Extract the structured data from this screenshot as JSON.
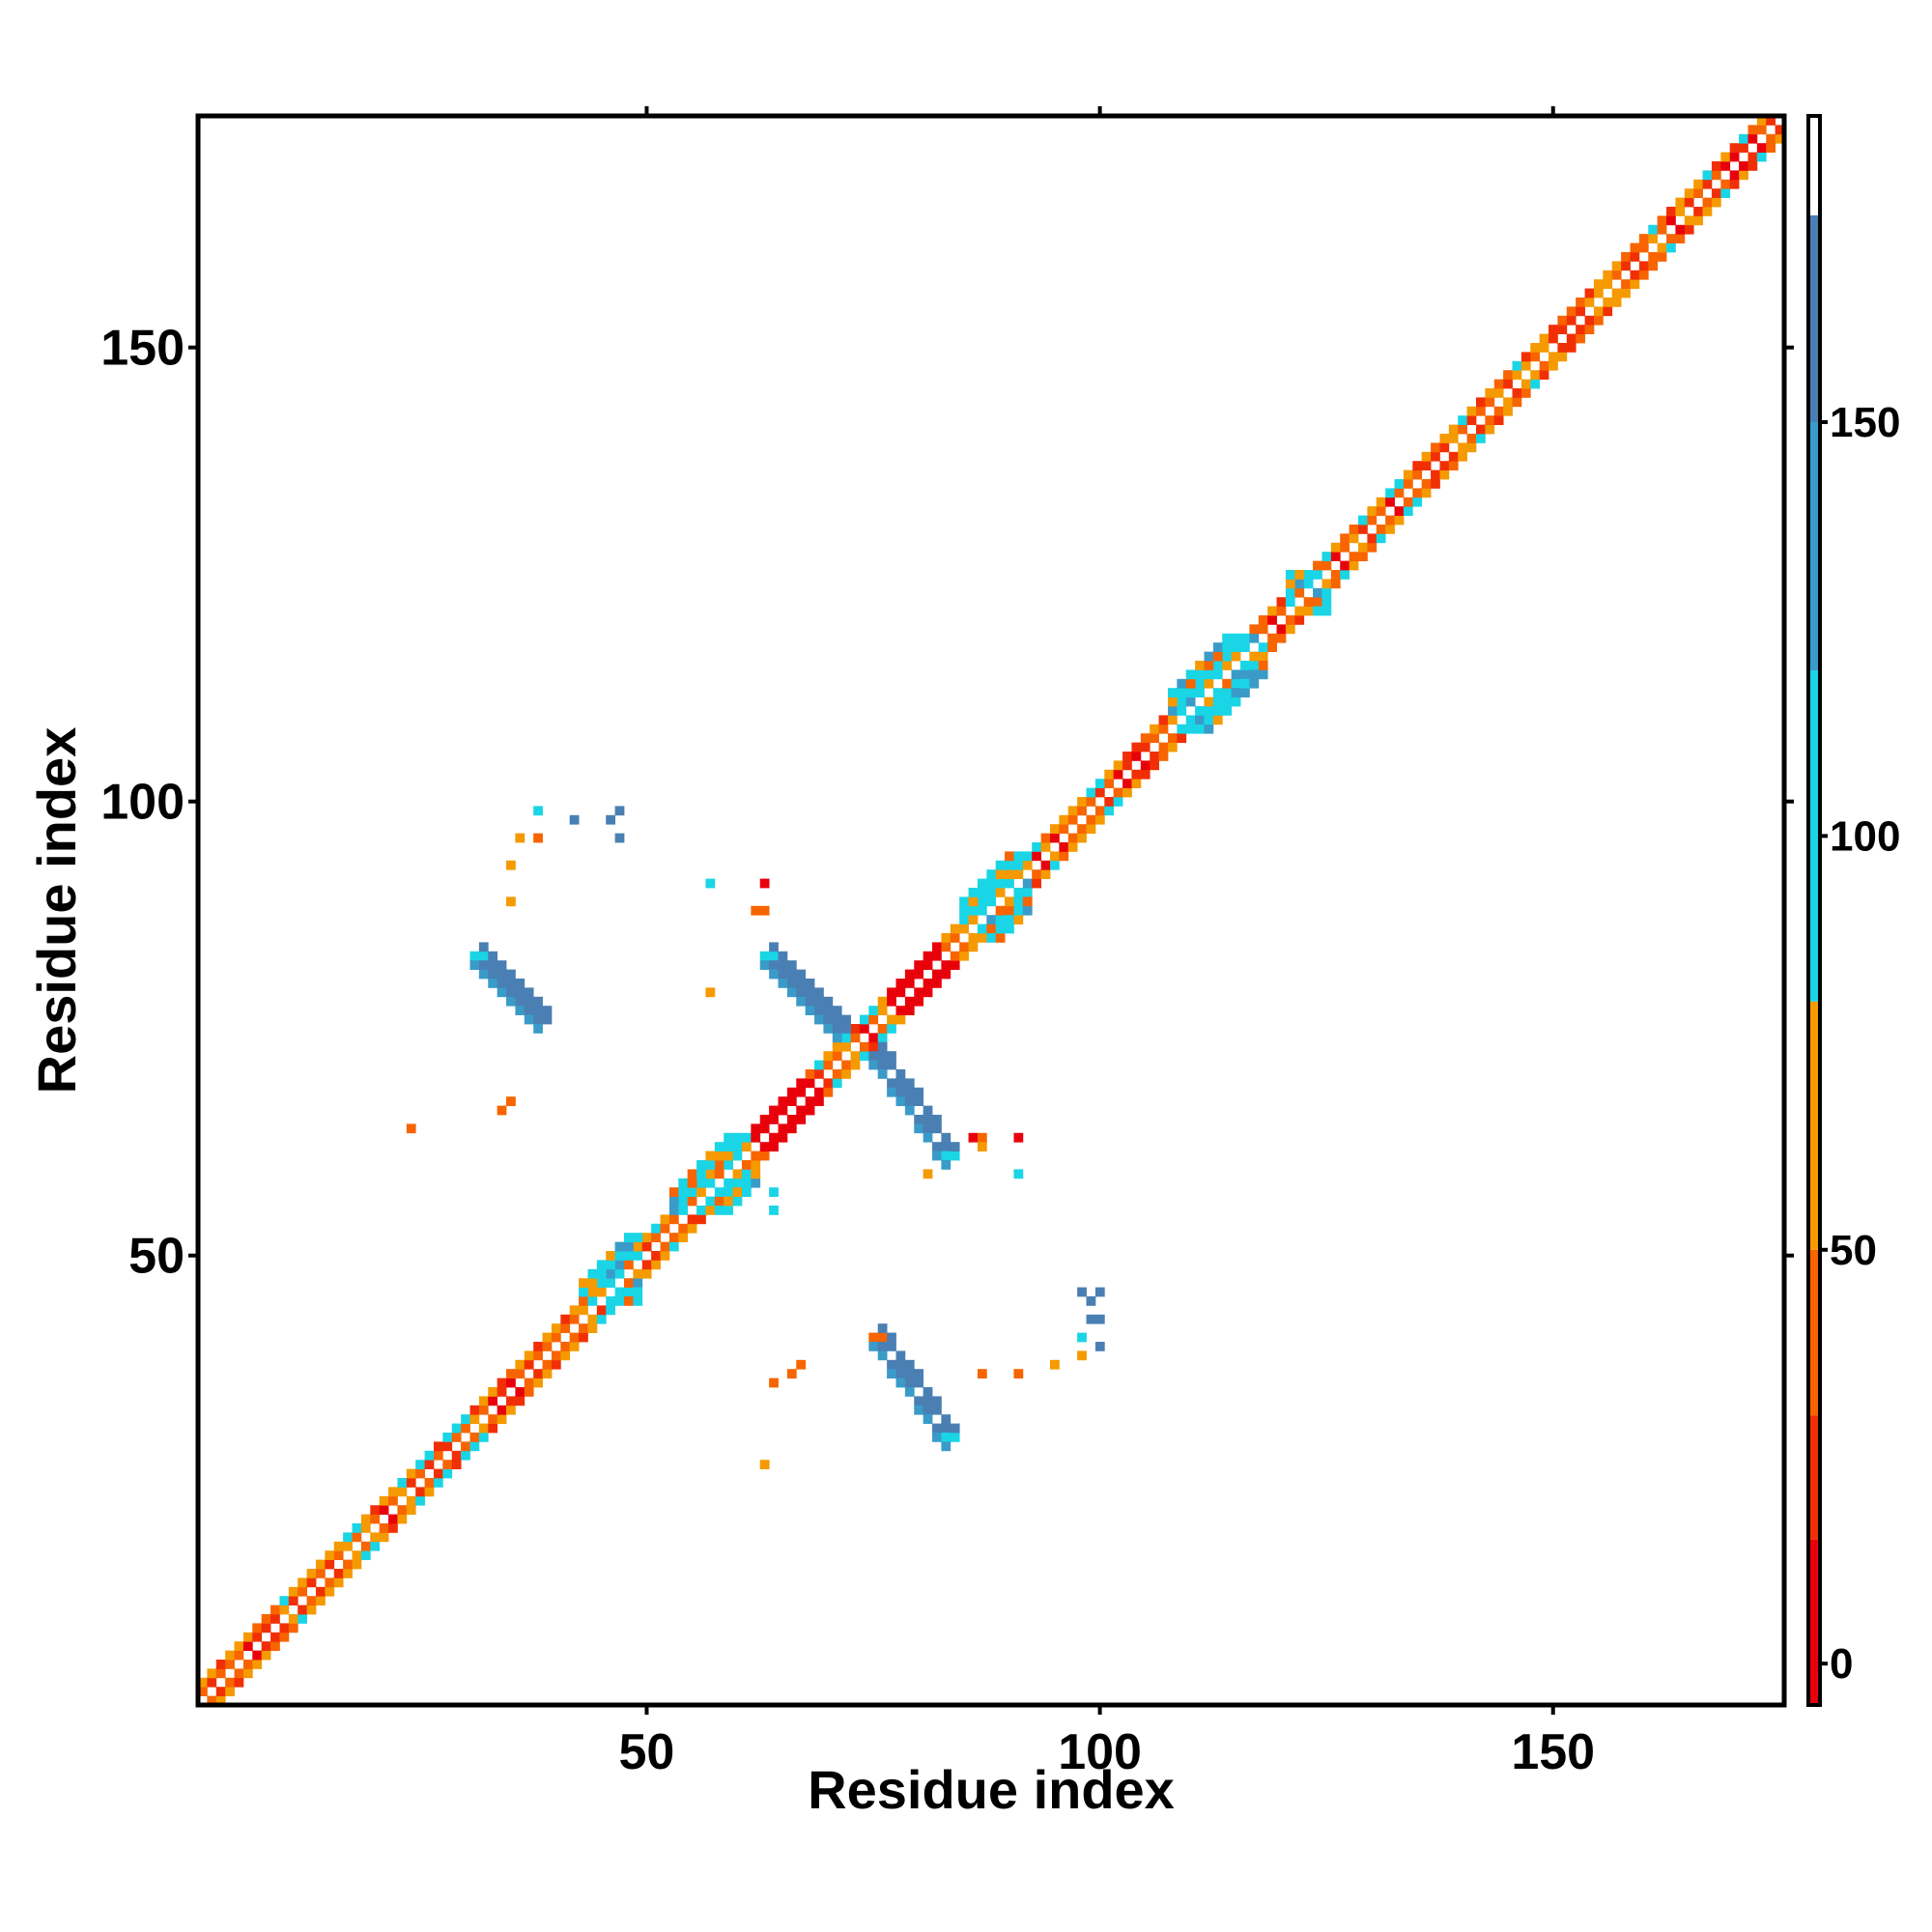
{
  "chart_data": {
    "type": "heatmap",
    "title": "",
    "xlabel": "Residue index",
    "ylabel": "Residue index",
    "xlim": [
      1,
      175
    ],
    "ylim": [
      1,
      175
    ],
    "grid": false,
    "x_ticks": [
      50,
      100,
      150
    ],
    "x_tick_labels": [
      "50",
      "100",
      "150"
    ],
    "y_ticks": [
      50,
      100,
      150
    ],
    "y_tick_labels": [
      "50",
      "100",
      "150"
    ],
    "colorbar": {
      "range": [
        -5,
        187
      ],
      "ticks": [
        0,
        50,
        100,
        150
      ],
      "tick_labels": [
        "0",
        "50",
        "100",
        "150"
      ],
      "bands": [
        {
          "from": -5,
          "to": 15,
          "color": "#e8000b"
        },
        {
          "from": 15,
          "to": 30,
          "color": "#f12f05"
        },
        {
          "from": 30,
          "to": 50,
          "color": "#f76400"
        },
        {
          "from": 50,
          "to": 80,
          "color": "#f59a00"
        },
        {
          "from": 80,
          "to": 120,
          "color": "#1ad5e6"
        },
        {
          "from": 120,
          "to": 150,
          "color": "#3a9bc8"
        },
        {
          "from": 150,
          "to": 175,
          "color": "#4a7fb3"
        },
        {
          "from": 175,
          "to": 187,
          "color": "#ffffff"
        }
      ]
    },
    "diagonal_band": {
      "start": 1,
      "end": 175,
      "half_width": 2
    },
    "strands": [
      {
        "i": [
          31,
          38
        ],
        "j": [
          83,
          76
        ],
        "value": 160
      },
      {
        "i": [
          63,
          71
        ],
        "j": [
          83,
          75
        ],
        "value": 160
      },
      {
        "i": [
          75,
          83
        ],
        "j": [
          72,
          61
        ],
        "value": 160
      },
      {
        "i": [
          75,
          83
        ],
        "j": [
          41,
          30
        ],
        "value": 160
      }
    ],
    "strand_ends": [
      {
        "i": 31,
        "j": 83,
        "value": 100
      },
      {
        "i": 63,
        "j": 83,
        "value": 100
      },
      {
        "i": 83,
        "j": 61,
        "value": 100
      },
      {
        "i": 83,
        "j": 30,
        "value": 100
      },
      {
        "i": 75,
        "j": 41,
        "value": 40
      }
    ],
    "red_stretches": [
      {
        "x": [
          62,
          67
        ],
        "y": [
          62,
          67
        ],
        "value": 5
      },
      {
        "x": [
          77,
          82
        ],
        "y": [
          77,
          82
        ],
        "value": 5
      }
    ],
    "cyan_clusters": [
      {
        "x": [
          43,
          49
        ],
        "y": [
          45,
          52
        ],
        "value": 100
      },
      {
        "x": [
          53,
          62
        ],
        "y": [
          55,
          63
        ],
        "value": 100
      },
      {
        "x": [
          85,
          92
        ],
        "y": [
          85,
          94
        ],
        "value": 100
      },
      {
        "x": [
          108,
          118
        ],
        "y": [
          108,
          118
        ],
        "value": 100
      },
      {
        "x": [
          121,
          125
        ],
        "y": [
          121,
          125
        ],
        "value": 100
      }
    ],
    "scatter_points": [
      {
        "x": 38,
        "y": 99,
        "value": 100
      },
      {
        "x": 42,
        "y": 98,
        "value": 160
      },
      {
        "x": 46,
        "y": 98,
        "value": 160
      },
      {
        "x": 47,
        "y": 99,
        "value": 150
      },
      {
        "x": 36,
        "y": 96,
        "value": 50
      },
      {
        "x": 38,
        "y": 96,
        "value": 40
      },
      {
        "x": 47,
        "y": 96,
        "value": 150
      },
      {
        "x": 35,
        "y": 93,
        "value": 50
      },
      {
        "x": 35,
        "y": 89,
        "value": 50
      },
      {
        "x": 57,
        "y": 91,
        "value": 100
      },
      {
        "x": 63,
        "y": 91,
        "value": 5
      },
      {
        "x": 62,
        "y": 88,
        "value": 40
      },
      {
        "x": 63,
        "y": 88,
        "value": 40
      },
      {
        "x": 57,
        "y": 79,
        "value": 50
      },
      {
        "x": 24,
        "y": 64,
        "value": 40
      },
      {
        "x": 34,
        "y": 66,
        "value": 40
      },
      {
        "x": 35,
        "y": 67,
        "value": 40
      },
      {
        "x": 86,
        "y": 63,
        "value": 5
      },
      {
        "x": 87,
        "y": 63,
        "value": 40
      },
      {
        "x": 91,
        "y": 63,
        "value": 5
      },
      {
        "x": 87,
        "y": 62,
        "value": 50
      },
      {
        "x": 91,
        "y": 59,
        "value": 100
      },
      {
        "x": 81,
        "y": 59,
        "value": 50
      },
      {
        "x": 64,
        "y": 57,
        "value": 100
      },
      {
        "x": 64,
        "y": 55,
        "value": 100
      },
      {
        "x": 98,
        "y": 46,
        "value": 150
      },
      {
        "x": 100,
        "y": 46,
        "value": 150
      },
      {
        "x": 99,
        "y": 45,
        "value": 160
      },
      {
        "x": 99,
        "y": 43,
        "value": 150
      },
      {
        "x": 100,
        "y": 43,
        "value": 150
      },
      {
        "x": 98,
        "y": 41,
        "value": 100
      },
      {
        "x": 100,
        "y": 40,
        "value": 150
      },
      {
        "x": 98,
        "y": 39,
        "value": 50
      },
      {
        "x": 87,
        "y": 37,
        "value": 40
      },
      {
        "x": 91,
        "y": 37,
        "value": 40
      },
      {
        "x": 95,
        "y": 38,
        "value": 50
      },
      {
        "x": 67,
        "y": 38,
        "value": 40
      },
      {
        "x": 66,
        "y": 37,
        "value": 40
      },
      {
        "x": 64,
        "y": 36,
        "value": 40
      },
      {
        "x": 63,
        "y": 27,
        "value": 50
      }
    ]
  }
}
